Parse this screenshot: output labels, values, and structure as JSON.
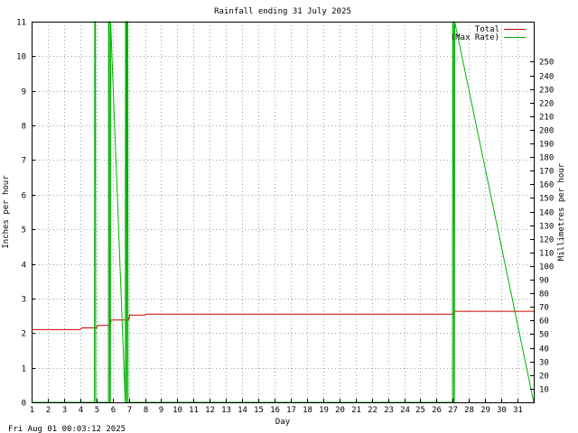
{
  "chart_data": {
    "type": "line",
    "title": "Rainfall ending 31 July 2025",
    "xlabel": "Day",
    "ylabel": "Inches per hour",
    "y2label": "Millimetres per hour",
    "footer": "Fri Aug 01 00:03:12 2025",
    "xlim": [
      1,
      32
    ],
    "ylim": [
      0,
      11
    ],
    "y2lim": [
      0,
      279.4
    ],
    "x_ticks": [
      1,
      2,
      3,
      4,
      5,
      6,
      7,
      8,
      9,
      10,
      11,
      12,
      13,
      14,
      15,
      16,
      17,
      18,
      19,
      20,
      21,
      22,
      23,
      24,
      25,
      26,
      27,
      28,
      29,
      30,
      31
    ],
    "y_ticks": [
      0,
      1,
      2,
      3,
      4,
      5,
      6,
      7,
      8,
      9,
      10,
      11
    ],
    "y2_ticks": [
      10,
      20,
      30,
      40,
      50,
      60,
      70,
      80,
      90,
      100,
      110,
      120,
      130,
      140,
      150,
      160,
      170,
      180,
      190,
      200,
      210,
      220,
      230,
      240,
      250
    ],
    "grid": true,
    "legend_position": "top-right",
    "series": [
      {
        "name": "Total",
        "color": "#cc0000",
        "x": [
          1,
          1.05,
          4,
          4.1,
          5,
          5.1,
          5.85,
          5.9,
          7,
          7.05,
          8,
          8.1,
          27,
          27.1,
          32
        ],
        "y": [
          2.05,
          2.1,
          2.1,
          2.15,
          2.15,
          2.22,
          2.22,
          2.38,
          2.38,
          2.52,
          2.52,
          2.55,
          2.55,
          2.63,
          2.63
        ]
      },
      {
        "name": "(Max Rate)",
        "color": "#00b000",
        "x": [
          1,
          4.88,
          4.9,
          4.94,
          4.96,
          5.74,
          5.75,
          5.8,
          5.82,
          5.86,
          5.88,
          6.78,
          6.8,
          6.84,
          6.86,
          6.88,
          6.9,
          6.94,
          6.96,
          26.98,
          27.0,
          27.05,
          27.07,
          27.1,
          27.12,
          32
        ],
        "y": [
          0,
          0,
          11,
          11,
          0,
          0,
          11,
          11,
          0,
          0,
          11,
          0,
          11,
          11,
          0,
          0,
          11,
          11,
          0,
          0,
          11,
          11,
          0,
          0,
          11,
          0
        ]
      }
    ]
  }
}
